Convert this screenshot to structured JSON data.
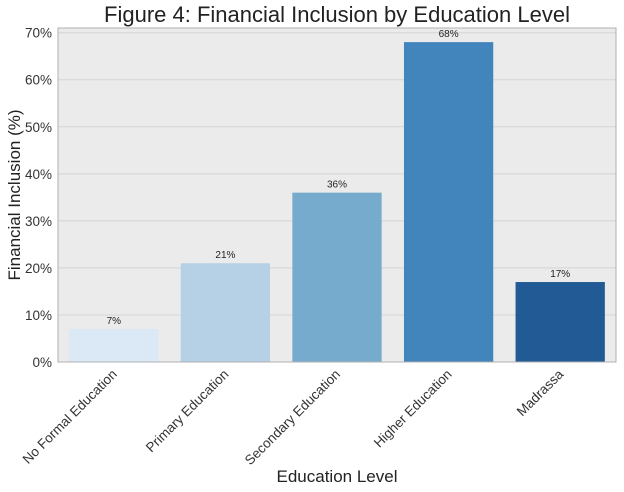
{
  "chart_data": {
    "type": "bar",
    "title": "Figure 4: Financial Inclusion by Education Level",
    "xlabel": "Education Level",
    "ylabel": "Financial Inclusion (%)",
    "categories": [
      "No Formal Education",
      "Primary Education",
      "Secondary Education",
      "Higher Education",
      "Madrassa"
    ],
    "values": [
      7,
      21,
      36,
      68,
      17
    ],
    "data_labels": [
      "7%",
      "21%",
      "36%",
      "68%",
      "17%"
    ],
    "ylim": [
      0,
      71
    ],
    "yticks": [
      0,
      10,
      20,
      30,
      40,
      50,
      60,
      70
    ],
    "ytick_labels": [
      "0%",
      "10%",
      "20%",
      "30%",
      "40%",
      "50%",
      "60%",
      "70%"
    ],
    "grid": true,
    "colors": {
      "plot_background": "#ebebeb",
      "grid": "#d4d4d4",
      "frame": "#b0b0b0",
      "bars": [
        "#dbe8f6",
        "#b6d1e6",
        "#76abce",
        "#4185bc",
        "#215a94"
      ]
    }
  }
}
